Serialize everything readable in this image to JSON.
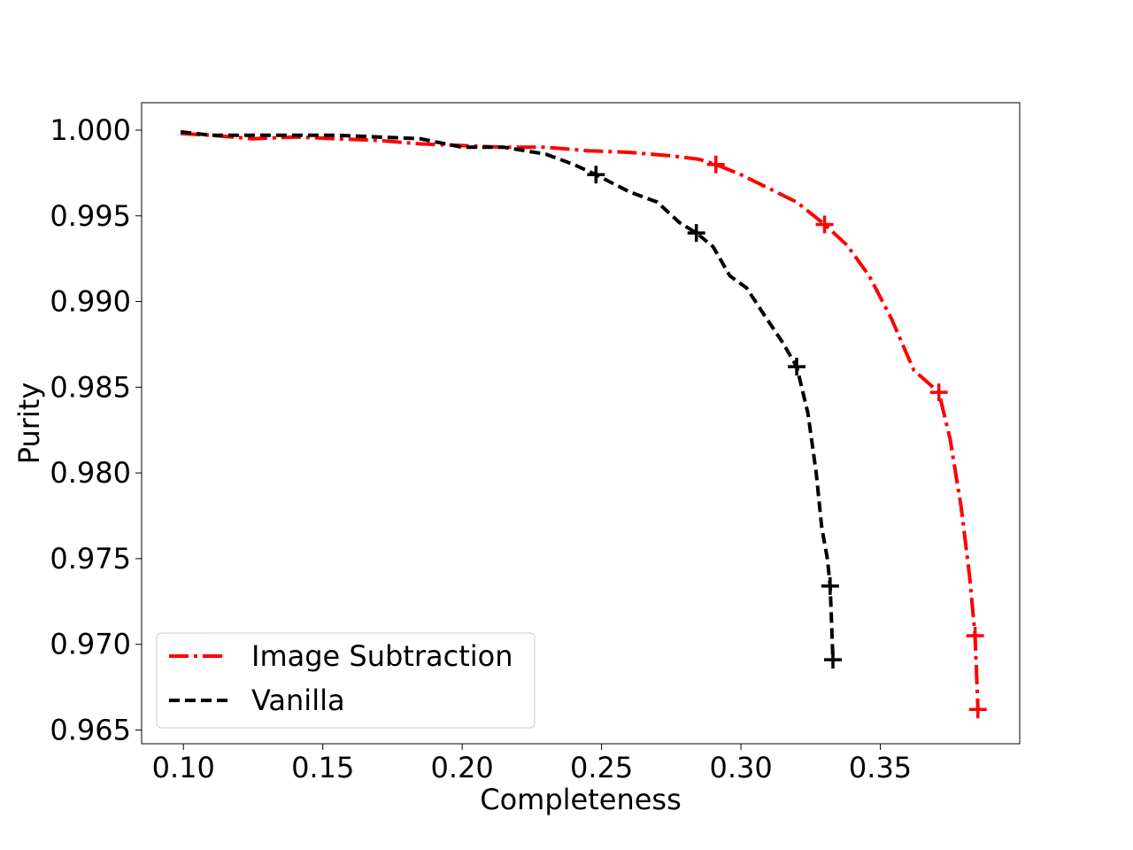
{
  "chart_data": {
    "type": "line",
    "title": "",
    "xlabel": "Completeness",
    "ylabel": "Purity",
    "xlim": [
      0.085,
      0.4
    ],
    "ylim": [
      0.9642,
      1.0016
    ],
    "x_ticks": [
      0.1,
      0.15,
      0.2,
      0.25,
      0.3,
      0.35
    ],
    "x_tick_labels": [
      "0.10",
      "0.15",
      "0.20",
      "0.25",
      "0.30",
      "0.35"
    ],
    "y_ticks": [
      0.965,
      0.97,
      0.975,
      0.98,
      0.985,
      0.99,
      0.995,
      1.0
    ],
    "y_tick_labels": [
      "0.965",
      "0.970",
      "0.975",
      "0.980",
      "0.985",
      "0.990",
      "0.995",
      "1.000"
    ],
    "grid": false,
    "legend_position": "bottom-left",
    "series": [
      {
        "name": "Image Subtraction",
        "color": "#ff0000",
        "line_style": "dashdot",
        "marker": "plus",
        "points": [
          [
            0.099,
            0.9998
          ],
          [
            0.11,
            0.9997
          ],
          [
            0.125,
            0.9995
          ],
          [
            0.14,
            0.9996
          ],
          [
            0.155,
            0.9995
          ],
          [
            0.17,
            0.9994
          ],
          [
            0.185,
            0.9992
          ],
          [
            0.2,
            0.9991
          ],
          [
            0.215,
            0.999
          ],
          [
            0.23,
            0.999
          ],
          [
            0.245,
            0.9988
          ],
          [
            0.26,
            0.9987
          ],
          [
            0.275,
            0.9985
          ],
          [
            0.285,
            0.9983
          ],
          [
            0.291,
            0.998
          ],
          [
            0.3,
            0.9974
          ],
          [
            0.31,
            0.9966
          ],
          [
            0.32,
            0.9958
          ],
          [
            0.33,
            0.9945
          ],
          [
            0.338,
            0.9933
          ],
          [
            0.346,
            0.9915
          ],
          [
            0.354,
            0.989
          ],
          [
            0.362,
            0.986
          ],
          [
            0.371,
            0.9847
          ],
          [
            0.375,
            0.982
          ],
          [
            0.379,
            0.978
          ],
          [
            0.382,
            0.974
          ],
          [
            0.384,
            0.9705
          ],
          [
            0.385,
            0.9662
          ]
        ],
        "marker_points": [
          [
            0.291,
            0.998
          ],
          [
            0.33,
            0.9945
          ],
          [
            0.371,
            0.9847
          ],
          [
            0.384,
            0.9705
          ],
          [
            0.385,
            0.9662
          ]
        ]
      },
      {
        "name": "Vanilla",
        "color": "#000000",
        "line_style": "dashed",
        "marker": "plus",
        "points": [
          [
            0.099,
            0.9999
          ],
          [
            0.11,
            0.9997
          ],
          [
            0.125,
            0.9997
          ],
          [
            0.14,
            0.9997
          ],
          [
            0.155,
            0.9997
          ],
          [
            0.17,
            0.9996
          ],
          [
            0.185,
            0.9995
          ],
          [
            0.2,
            0.999
          ],
          [
            0.215,
            0.999
          ],
          [
            0.23,
            0.9986
          ],
          [
            0.24,
            0.998
          ],
          [
            0.248,
            0.9974
          ],
          [
            0.26,
            0.9964
          ],
          [
            0.27,
            0.9958
          ],
          [
            0.278,
            0.9946
          ],
          [
            0.284,
            0.994
          ],
          [
            0.29,
            0.9932
          ],
          [
            0.296,
            0.9915
          ],
          [
            0.302,
            0.9908
          ],
          [
            0.308,
            0.9893
          ],
          [
            0.315,
            0.9876
          ],
          [
            0.32,
            0.9862
          ],
          [
            0.324,
            0.9835
          ],
          [
            0.327,
            0.98
          ],
          [
            0.329,
            0.9768
          ],
          [
            0.331,
            0.975
          ],
          [
            0.332,
            0.9734
          ],
          [
            0.333,
            0.9691
          ]
        ],
        "marker_points": [
          [
            0.248,
            0.9974
          ],
          [
            0.284,
            0.994
          ],
          [
            0.32,
            0.9862
          ],
          [
            0.332,
            0.9734
          ],
          [
            0.333,
            0.9691
          ]
        ]
      }
    ]
  }
}
